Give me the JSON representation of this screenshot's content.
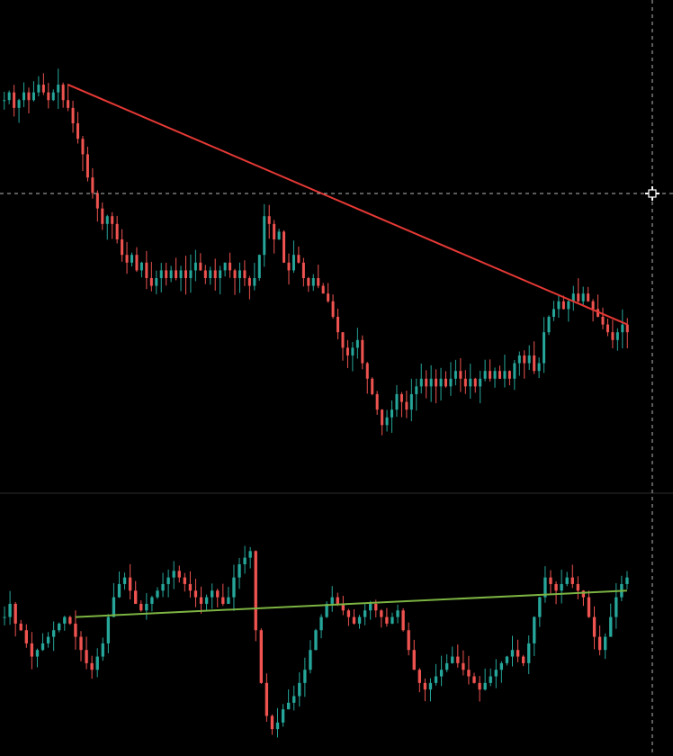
{
  "colors": {
    "background": "#000000",
    "bullish_candle": "#26a69a",
    "bearish_candle": "#ef5350",
    "main_trendline": "#e53935",
    "lower_trendline": "#7cb342",
    "crosshair": "#b8b8b8",
    "pane_separator": "#2e2e2e"
  },
  "crosshair": {
    "icon": "crosshair-cursor-icon"
  },
  "chart_data": [
    {
      "type": "candlestick",
      "pane": "main",
      "grid": false,
      "legend": "none",
      "description_note": "",
      "series": [
        {
          "kind": "ohlc-close-path",
          "closes": [
            100,
            101,
            99,
            100,
            101,
            100,
            101,
            102,
            101,
            100,
            101,
            102,
            100,
            99,
            97,
            95,
            93,
            90,
            88,
            86,
            84,
            85,
            84,
            82,
            80,
            79,
            80,
            78,
            79,
            77,
            76,
            77,
            78,
            77,
            78,
            77,
            78,
            77,
            78,
            79,
            78,
            77,
            78,
            77,
            78,
            79,
            78,
            77,
            78,
            77,
            76,
            77,
            80,
            85,
            84,
            82,
            83,
            79,
            78,
            80,
            79,
            77,
            76,
            77,
            76,
            75,
            74,
            72,
            70,
            68,
            67,
            68,
            69,
            66,
            64,
            62,
            60,
            58,
            59,
            60,
            62,
            61,
            60,
            62,
            63,
            64,
            63,
            64,
            63,
            64,
            63,
            64,
            65,
            64,
            63,
            64,
            63,
            64,
            65,
            64,
            65,
            64,
            65,
            64,
            66,
            67,
            66,
            67,
            65,
            66,
            70,
            72,
            73,
            74,
            73,
            74,
            75,
            74,
            75,
            74,
            73,
            72,
            71,
            70,
            69,
            70,
            71,
            70
          ]
        }
      ],
      "trendline": {
        "from": {
          "index": 13,
          "value": 102
        },
        "to": {
          "index": 127,
          "value": 71
        }
      }
    },
    {
      "type": "candlestick",
      "pane": "lower",
      "grid": false,
      "legend": "none",
      "series": [
        {
          "kind": "ohlc-close-path",
          "closes": [
            50,
            52,
            49,
            48,
            46,
            44,
            45,
            46,
            47,
            48,
            49,
            50,
            49,
            47,
            45,
            43,
            42,
            44,
            46,
            50,
            53,
            55,
            56,
            54,
            52,
            51,
            52,
            53,
            54,
            55,
            56,
            57,
            56,
            55,
            54,
            53,
            52,
            53,
            54,
            53,
            52,
            53,
            56,
            58,
            59,
            60,
            48,
            40,
            35,
            33,
            34,
            36,
            37,
            38,
            40,
            42,
            45,
            48,
            50,
            52,
            53,
            52,
            51,
            50,
            49,
            50,
            51,
            52,
            51,
            50,
            49,
            50,
            51,
            48,
            45,
            42,
            40,
            39,
            40,
            41,
            42,
            43,
            44,
            43,
            42,
            41,
            40,
            39,
            40,
            41,
            42,
            43,
            44,
            45,
            44,
            43,
            46,
            50,
            53,
            56,
            55,
            54,
            55,
            56,
            55,
            54,
            53,
            50,
            47,
            45,
            47,
            50,
            53,
            55,
            56
          ]
        }
      ],
      "trendline": {
        "from": {
          "index": 13,
          "value": 50
        },
        "to": {
          "index": 127,
          "value": 54
        }
      }
    }
  ]
}
